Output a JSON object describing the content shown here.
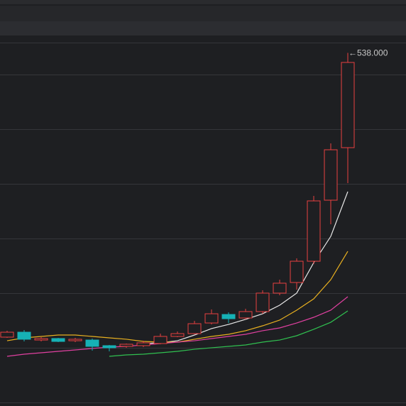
{
  "chart_data": {
    "type": "candlestick",
    "categories": [
      null,
      null,
      null,
      null,
      null,
      null,
      null,
      null,
      null,
      null,
      null,
      null,
      null,
      null,
      null,
      null,
      null,
      null,
      null,
      null,
      null
    ],
    "open": [
      94.2,
      101.9,
      89.7,
      92.0,
      88.6,
      89.7,
      80.9,
      79.8,
      80.9,
      84.2,
      95.3,
      99.7,
      116.3,
      129.6,
      124.1,
      134.1,
      162.9,
      179.5,
      212.7,
      308.0,
      390.0
    ],
    "high": [
      104.2,
      105.3,
      94.2,
      93.1,
      93.1,
      92.0,
      82.0,
      84.2,
      88.6,
      99.7,
      103.0,
      119.7,
      137.4,
      133.0,
      138.5,
      167.3,
      183.9,
      217.2,
      314.7,
      396.7,
      538
    ],
    "low": [
      93.1,
      87.5,
      87.5,
      86.4,
      86.4,
      73.1,
      72.0,
      77.6,
      78.7,
      83.1,
      94.2,
      98.6,
      114.1,
      116.3,
      121.9,
      130.7,
      159.6,
      168.4,
      208.3,
      270.4,
      334.6
    ],
    "close": [
      101.9,
      90.9,
      92.0,
      87.5,
      90.9,
      79.8,
      77.6,
      83.1,
      85.3,
      95.3,
      99.7,
      115.2,
      130.7,
      123.0,
      134.1,
      162.9,
      178.4,
      212.7,
      306.9,
      386.7,
      523.0
    ],
    "up_color": "#e84040",
    "down_color": "#16b1b5",
    "lines": [
      {
        "color": "#e8e8e8",
        "values": [
          null,
          null,
          null,
          null,
          null,
          null,
          null,
          null,
          84.2,
          85.3,
          88.6,
          97.5,
          107.5,
          114.1,
          121.9,
          130.7,
          144.0,
          162.9,
          210.5,
          251.5,
          321.3
        ]
      },
      {
        "color": "#e8b020",
        "values": [
          88.6,
          93.1,
          95.3,
          97.5,
          97.5,
          95.3,
          93.1,
          90.9,
          87.5,
          86.4,
          86.4,
          90.9,
          95.3,
          98.6,
          104.2,
          111.9,
          120.8,
          136.3,
          154.0,
          183.9,
          228.2
        ]
      },
      {
        "color": "#e040a0",
        "values": [
          64.3,
          67.6,
          69.8,
          72.0,
          74.2,
          76.5,
          78.7,
          79.8,
          82.0,
          84.2,
          86.4,
          88.6,
          92.0,
          95.3,
          98.6,
          104.2,
          108.6,
          116.3,
          125.2,
          136.3,
          157.3
        ]
      },
      {
        "color": "#30c050",
        "values": [
          null,
          null,
          null,
          null,
          null,
          null,
          64.3,
          66.5,
          67.6,
          69.8,
          72.0,
          75.3,
          77.6,
          79.8,
          82.0,
          86.4,
          89.7,
          96.4,
          106.4,
          117.4,
          135.2
        ]
      }
    ],
    "high_label": "←538.000",
    "ylim": [
      0,
      554
    ]
  }
}
